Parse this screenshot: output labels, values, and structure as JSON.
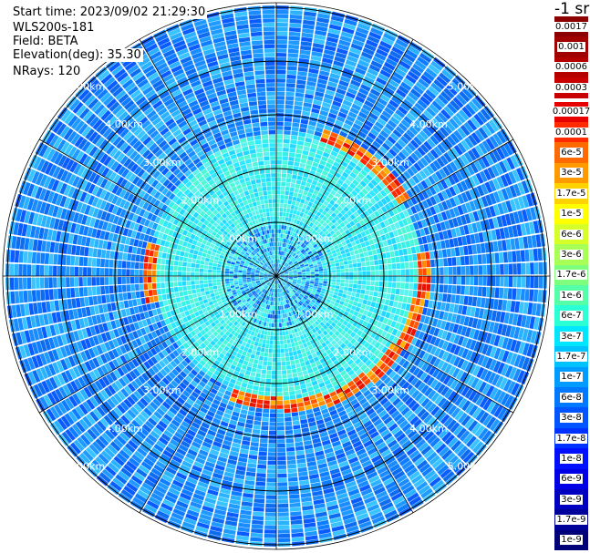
{
  "header": {
    "start_time": "Start time: 2023/09/02 21:29:30",
    "instrument": "WLS200s-181",
    "field": "Field: BETA",
    "elevation": "Elevation(deg): 35.30",
    "nrays": "NRays: 120"
  },
  "colorbar": {
    "unit_label": "-1 sr",
    "upper_labels": [
      "0.0017",
      "0.001",
      "0.0006",
      "0.0003"
    ],
    "upper_colors": [
      "#8b0000",
      "#a00000",
      "#b50000",
      "#c80000"
    ],
    "lower_labels": [
      "0.00017",
      "0.0001",
      "6e-5",
      "3e-5",
      "1.7e-5",
      "1e-5",
      "6e-6",
      "3e-6",
      "1.7e-6",
      "1e-6",
      "6e-7",
      "3e-7",
      "1.7e-7",
      "1e-7",
      "6e-8",
      "3e-8",
      "1.7e-8",
      "1e-8",
      "6e-9",
      "3e-9",
      "1.7e-9",
      "1e-9"
    ],
    "lower_colors": [
      "#e60000",
      "#ff2a00",
      "#ff6a00",
      "#ff9a00",
      "#ffd200",
      "#ffff00",
      "#d6ff2a",
      "#a8ff55",
      "#7dff7d",
      "#55ffa8",
      "#2affd6",
      "#00e6ff",
      "#00c2ff",
      "#009cff",
      "#0078ff",
      "#0055ff",
      "#0032ff",
      "#0010ff",
      "#0000e6",
      "#0000c0",
      "#00009a",
      "#000078"
    ]
  },
  "chart_data": {
    "type": "heatmap",
    "projection": "polar PPI",
    "field": "BETA",
    "range_rings_km": [
      1.0,
      2.0,
      3.0,
      4.0,
      5.0
    ],
    "ring_labels": [
      "1.00km",
      "2.00km",
      "3.00km",
      "4.00km",
      "5.00km"
    ],
    "radial_lines_deg": [
      0,
      30,
      60,
      90,
      120,
      150,
      180,
      210,
      240,
      270,
      300,
      330
    ],
    "n_rays": 120,
    "max_range_km": 7.0,
    "ring_feature": {
      "description_values": "enhanced backscatter band",
      "inner_radius_km": 2.3,
      "outer_radius_km": 2.8,
      "beta_level": "1e-4 to 1.7e-4"
    },
    "inner_region": {
      "max_range_km": 2.7,
      "beta_level": "3e-7"
    },
    "outer_region": {
      "beta_level": "3e-8 to 1.7e-7"
    }
  }
}
